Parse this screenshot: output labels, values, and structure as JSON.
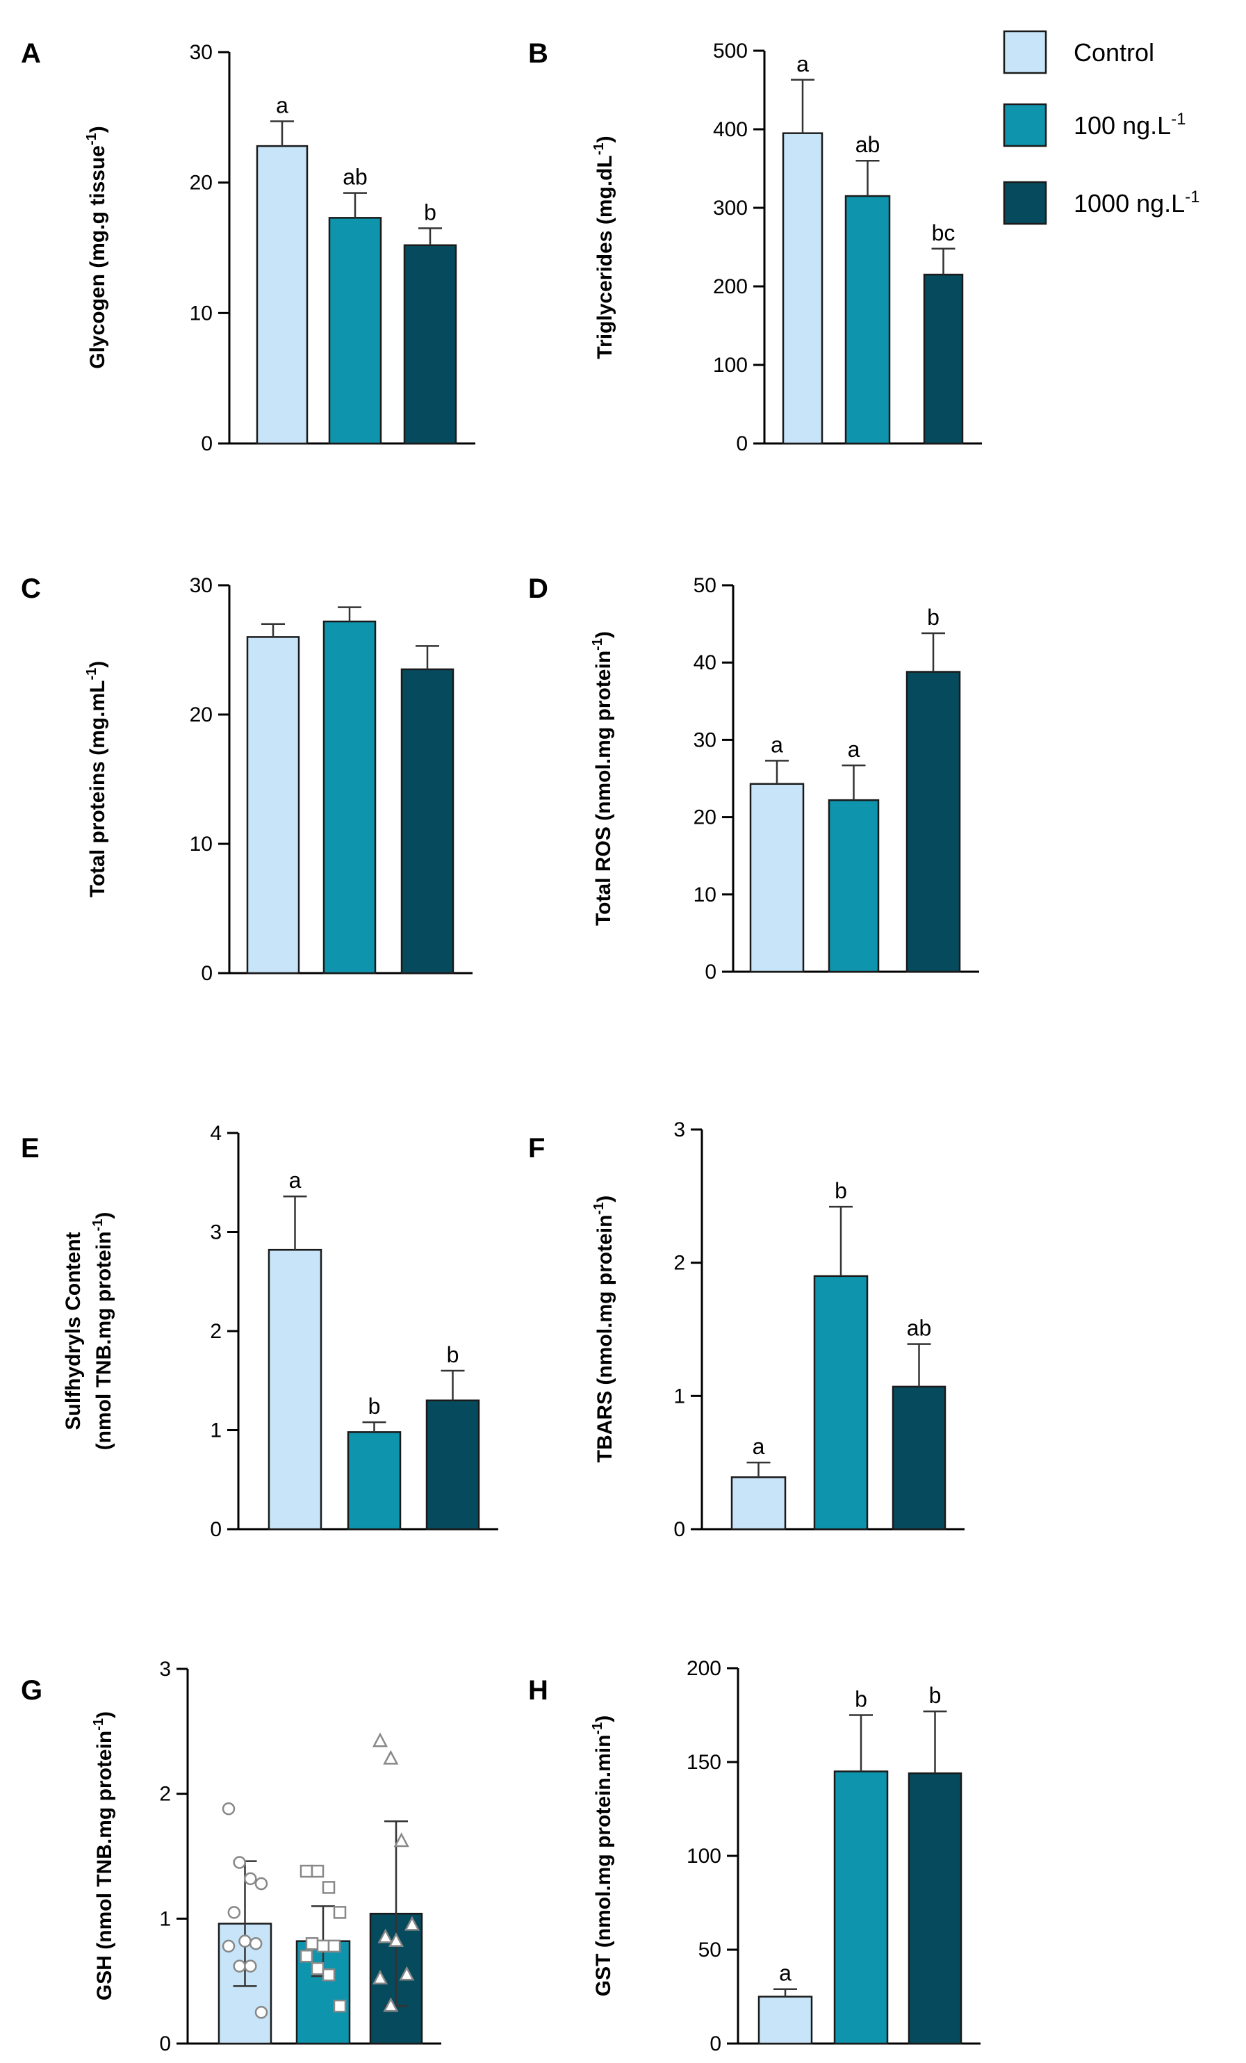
{
  "colors": {
    "Control": "#c7e4f9",
    "100 ng.L-1": "#0f94ad",
    "1000 ng.L-1": "#064a5e",
    "axis": "#000000"
  },
  "legend": {
    "items": [
      {
        "label": "Control",
        "sup": "",
        "color_key": "Control"
      },
      {
        "label": "100 ng.L",
        "sup": "-1",
        "color_key": "100 ng.L-1"
      },
      {
        "label": "1000 ng.L",
        "sup": "-1",
        "color_key": "1000 ng.L-1"
      }
    ]
  },
  "chart_data": [
    {
      "panel": "A",
      "type": "bar",
      "categories": [
        "Control",
        "100 ng.L-1",
        "1000 ng.L-1"
      ],
      "values": [
        22.8,
        17.3,
        15.2
      ],
      "errors": [
        1.9,
        1.9,
        1.3
      ],
      "labels": [
        "a",
        "ab",
        "b"
      ],
      "ylabel": "Glycogen (mg.g tissue",
      "ylabel_sup": "-1",
      "ylabel_tail": ")",
      "ylim": [
        0,
        30
      ],
      "yticks": [
        0,
        10,
        20,
        30
      ]
    },
    {
      "panel": "B",
      "type": "bar",
      "categories": [
        "Control",
        "100 ng.L-1",
        "1000 ng.L-1"
      ],
      "values": [
        395,
        315,
        215
      ],
      "errors": [
        68,
        45,
        33
      ],
      "labels": [
        "a",
        "ab",
        "bc"
      ],
      "ylabel": "Triglycerides (mg.dL",
      "ylabel_sup": "-1",
      "ylabel_tail": ")",
      "ylim": [
        0,
        500
      ],
      "yticks": [
        0,
        100,
        200,
        300,
        400,
        500
      ]
    },
    {
      "panel": "C",
      "type": "bar",
      "categories": [
        "Control",
        "100 ng.L-1",
        "1000 ng.L-1"
      ],
      "values": [
        26.0,
        27.2,
        23.5
      ],
      "errors": [
        1.0,
        1.1,
        1.8
      ],
      "labels": [
        "",
        "",
        ""
      ],
      "ylabel": "Total proteins (mg.mL",
      "ylabel_sup": "-1",
      "ylabel_tail": ")",
      "ylim": [
        0,
        30
      ],
      "yticks": [
        0,
        10,
        20,
        30
      ]
    },
    {
      "panel": "D",
      "type": "bar",
      "categories": [
        "Control",
        "100 ng.L-1",
        "1000 ng.L-1"
      ],
      "values": [
        24.3,
        22.2,
        38.8
      ],
      "errors": [
        3.0,
        4.5,
        5.0
      ],
      "labels": [
        "a",
        "a",
        "b"
      ],
      "ylabel": "Total ROS (nmol.mg protein",
      "ylabel_sup": "-1",
      "ylabel_tail": ")",
      "ylim": [
        0,
        50
      ],
      "yticks": [
        0,
        10,
        20,
        30,
        40,
        50
      ]
    },
    {
      "panel": "E",
      "type": "bar",
      "categories": [
        "Control",
        "100 ng.L-1",
        "1000 ng.L-1"
      ],
      "values": [
        2.82,
        0.98,
        1.3
      ],
      "errors": [
        0.54,
        0.1,
        0.3
      ],
      "labels": [
        "a",
        "b",
        "b"
      ],
      "ylabel": "Sulfhydryls Content",
      "ylabel2": "(nmol TNB.mg protein",
      "ylabel_sup": "-1",
      "ylabel_tail": ")",
      "ylim": [
        0,
        4
      ],
      "yticks": [
        0,
        1,
        2,
        3,
        4
      ]
    },
    {
      "panel": "F",
      "type": "bar",
      "categories": [
        "Control",
        "100 ng.L-1",
        "1000 ng.L-1"
      ],
      "values": [
        0.39,
        1.9,
        1.07
      ],
      "errors": [
        0.11,
        0.52,
        0.32
      ],
      "labels": [
        "a",
        "b",
        "ab"
      ],
      "ylabel": "TBARS (nmol.mg protein",
      "ylabel_sup": "-1",
      "ylabel_tail": ")",
      "ylim": [
        0,
        3
      ],
      "yticks": [
        0,
        1,
        2,
        3
      ]
    },
    {
      "panel": "G",
      "type": "bar",
      "categories": [
        "Control",
        "100 ng.L-1",
        "1000 ng.L-1"
      ],
      "values": [
        0.96,
        0.82,
        1.04
      ],
      "errors": [
        0.5,
        0.28,
        0.74
      ],
      "labels": [
        "",
        "",
        ""
      ],
      "ylabel": "GSH (nmol TNB.mg protein",
      "ylabel_sup": "-1",
      "ylabel_tail": ")",
      "ylim": [
        0,
        3
      ],
      "yticks": [
        0,
        1,
        2,
        3
      ],
      "points": [
        [
          1.88,
          1.45,
          1.32,
          1.28,
          1.05,
          0.82,
          0.8,
          0.78,
          0.62,
          0.62,
          0.25
        ],
        [
          1.38,
          1.38,
          1.25,
          1.05,
          0.8,
          0.78,
          0.78,
          0.7,
          0.6,
          0.55,
          0.3
        ],
        [
          2.42,
          2.28,
          1.62,
          0.95,
          0.85,
          0.82,
          0.55,
          0.52,
          0.3
        ]
      ],
      "markers": [
        "circle",
        "square",
        "triangle"
      ]
    },
    {
      "panel": "H",
      "type": "bar",
      "categories": [
        "Control",
        "100 ng.L-1",
        "1000 ng.L-1"
      ],
      "values": [
        25,
        145,
        144
      ],
      "errors": [
        4,
        30,
        33
      ],
      "labels": [
        "a",
        "b",
        "b"
      ],
      "ylabel": "GST (nmol.mg protein.min",
      "ylabel_sup": "-1",
      "ylabel_tail": ")",
      "ylim": [
        0,
        200
      ],
      "yticks": [
        0,
        50,
        100,
        150,
        200
      ]
    }
  ]
}
